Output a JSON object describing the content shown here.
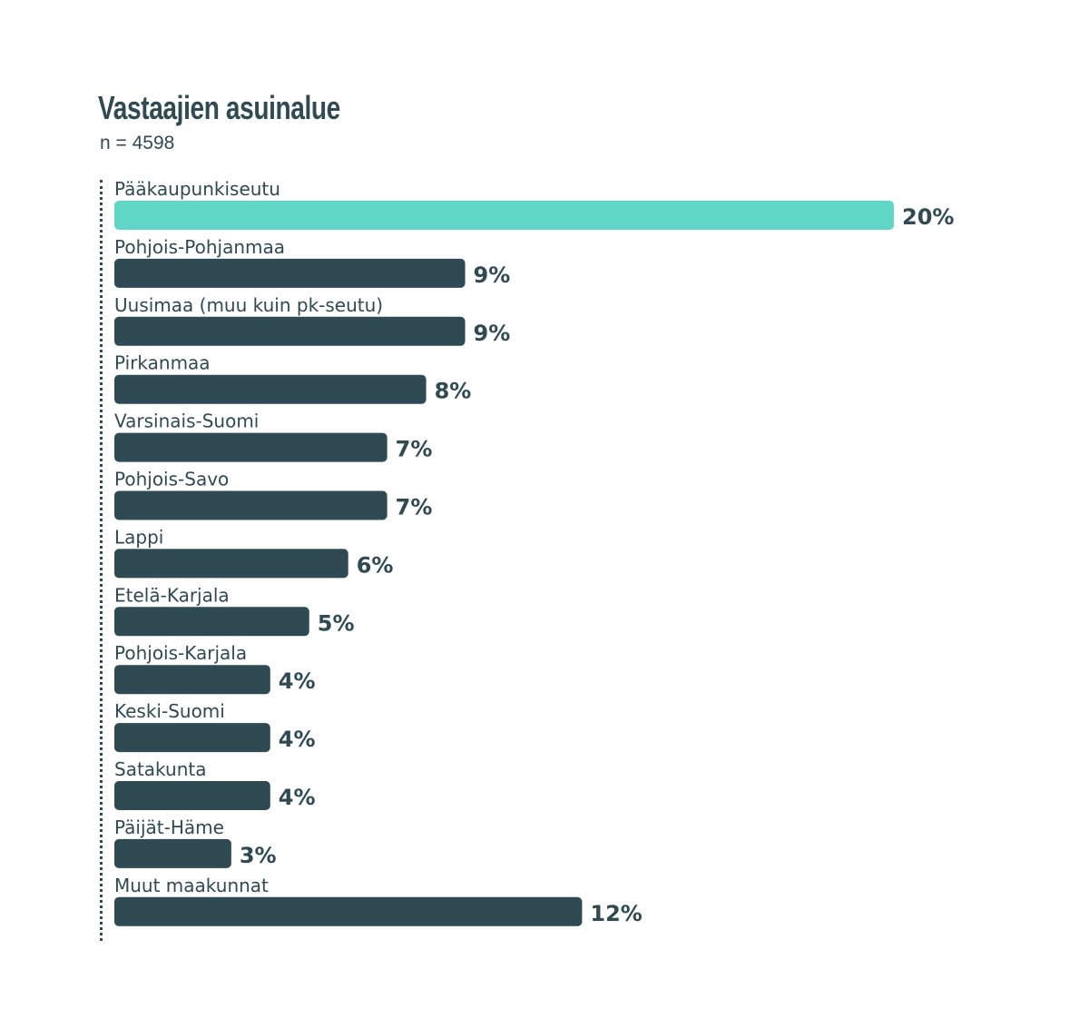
{
  "header": {
    "title": "Vastaajien asuinalue",
    "subtitle": "n = 4598"
  },
  "colors": {
    "highlight": "#5fd6c6",
    "bar": "#2f4a52",
    "text": "#2f4a52"
  },
  "chart_data": {
    "type": "bar",
    "orientation": "horizontal",
    "title": "Vastaajien asuinalue",
    "subtitle": "n = 4598",
    "xlabel": "",
    "ylabel": "",
    "unit": "%",
    "xlim": [
      0,
      20
    ],
    "grid": false,
    "legend": "none",
    "highlight_index": 0,
    "categories": [
      "Pääkaupunkiseutu",
      "Pohjois-Pohjanmaa",
      "Uusimaa (muu kuin pk-seutu)",
      "Pirkanmaa",
      "Varsinais-Suomi",
      "Pohjois-Savo",
      "Lappi",
      "Etelä-Karjala",
      "Pohjois-Karjala",
      "Keski-Suomi",
      "Satakunta",
      "Päijät-Häme",
      "Muut maakunnat"
    ],
    "values": [
      20,
      9,
      9,
      8,
      7,
      7,
      6,
      5,
      4,
      4,
      4,
      3,
      12
    ],
    "value_labels": [
      "20%",
      "9%",
      "9%",
      "8%",
      "7%",
      "7%",
      "6%",
      "5%",
      "4%",
      "4%",
      "4%",
      "3%",
      "12%"
    ]
  }
}
